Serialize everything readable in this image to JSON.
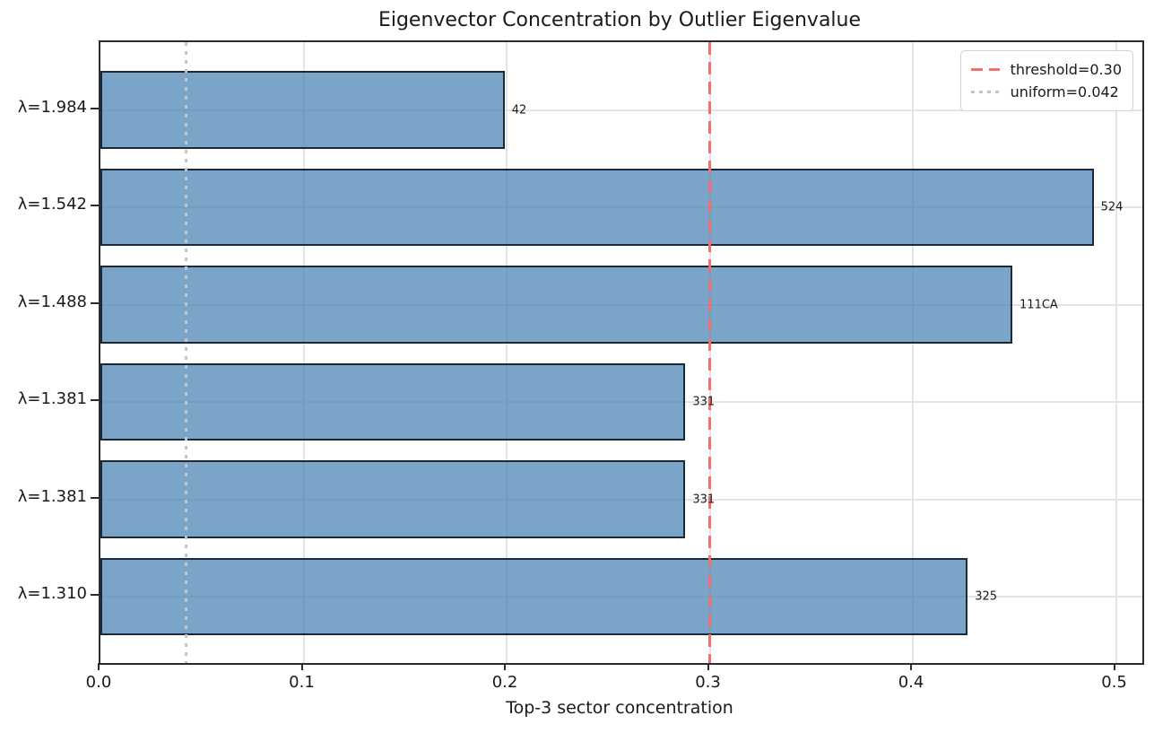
{
  "chart_data": {
    "type": "bar",
    "orientation": "horizontal",
    "title": "Eigenvector Concentration by Outlier Eigenvalue",
    "xlabel": "Top-3 sector concentration",
    "ylabel": "",
    "categories": [
      "λ=1.984",
      "λ=1.542",
      "λ=1.488",
      "λ=1.381",
      "λ=1.381",
      "λ=1.310"
    ],
    "values": [
      0.199,
      0.489,
      0.449,
      0.288,
      0.288,
      0.427
    ],
    "bar_labels": [
      "42",
      "524",
      "111CA",
      "331",
      "331",
      "325"
    ],
    "xlim": [
      0,
      0.513
    ],
    "xticks": [
      {
        "value": 0.0,
        "label": "0.0"
      },
      {
        "value": 0.1,
        "label": "0.1"
      },
      {
        "value": 0.2,
        "label": "0.2"
      },
      {
        "value": 0.3,
        "label": "0.3"
      },
      {
        "value": 0.4,
        "label": "0.4"
      },
      {
        "value": 0.5,
        "label": "0.5"
      }
    ],
    "grid": true,
    "legend_position": "upper right",
    "colors": {
      "bar_fill": "#4682b4",
      "bar_edge": "#000000",
      "threshold_line": "#f76d6d",
      "uniform_line": "#c4c4c4",
      "grid_line": "#e4e4e4"
    },
    "reference_lines": [
      {
        "value": 0.3,
        "style": "dashed",
        "color": "#f76d6d",
        "label": "threshold=0.30"
      },
      {
        "value": 0.042,
        "style": "dotted",
        "color": "#c4c4c4",
        "label": "uniform=0.042"
      }
    ]
  }
}
